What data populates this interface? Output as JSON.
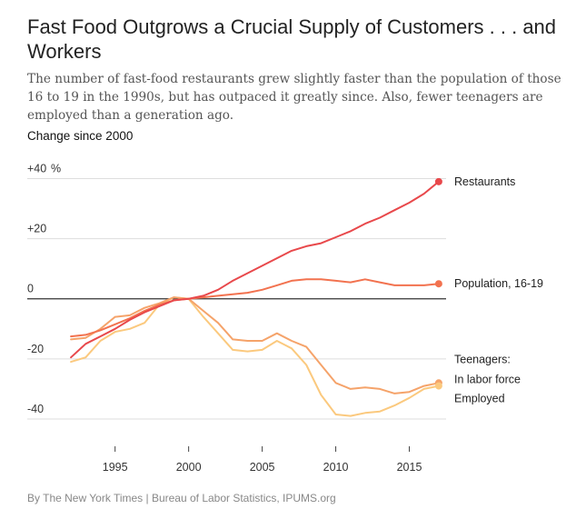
{
  "headline": {
    "title": "Fast Food Outgrows a Crucial Supply of Customers . . . and Workers",
    "subtitle": "The number of fast-food restaurants grew slightly faster than the population of those 16 to 19 in the 1990s, but has outpaced it greatly since. Also, fewer teenagers are employed than a generation ago.",
    "section_label": "Change since 2000",
    "source": "By The New York Times | Bureau of Labor Statistics, IPUMS.org"
  },
  "chart_data": {
    "type": "line",
    "title": "Change since 2000",
    "y_unit": "%",
    "xlim": [
      1991.5,
      2017.5
    ],
    "ylim": [
      -50,
      45
    ],
    "x_ticks": [
      1995,
      2000,
      2005,
      2010,
      2015
    ],
    "y_ticks": [
      40,
      20,
      0,
      -20,
      -40
    ],
    "y_tick_labels": [
      "+40",
      "+20",
      "0",
      "-20",
      "-40"
    ],
    "grid": "horizontal",
    "group_label": "Teenagers:",
    "series": [
      {
        "name": "Restaurants",
        "color": "#e8484b",
        "x": [
          1992,
          1993,
          1994,
          1995,
          1996,
          1997,
          1998,
          1999,
          2000,
          2001,
          2002,
          2003,
          2004,
          2005,
          2006,
          2007,
          2008,
          2009,
          2010,
          2011,
          2012,
          2013,
          2014,
          2015,
          2016,
          2017
        ],
        "values": [
          -19.5,
          -15,
          -12.5,
          -10,
          -7,
          -4.5,
          -2.5,
          -0.5,
          0,
          1,
          3,
          6,
          8.5,
          11,
          13.5,
          16,
          17.5,
          18.5,
          20.5,
          22.5,
          25,
          27,
          29.5,
          32,
          35,
          39
        ]
      },
      {
        "name": "Population, 16-19",
        "color": "#f2724f",
        "x": [
          1992,
          1993,
          1994,
          1995,
          1996,
          1997,
          1998,
          1999,
          2000,
          2001,
          2002,
          2003,
          2004,
          2005,
          2006,
          2007,
          2008,
          2009,
          2010,
          2011,
          2012,
          2013,
          2014,
          2015,
          2016,
          2017
        ],
        "values": [
          -12.5,
          -12,
          -10.5,
          -8.5,
          -6.5,
          -4,
          -2,
          -0.5,
          0,
          0.5,
          1,
          1.5,
          2,
          3,
          4.5,
          6,
          6.5,
          6.5,
          6,
          5.5,
          6.5,
          5.5,
          4.5,
          4.5,
          4.5,
          5
        ]
      },
      {
        "name": "In labor force",
        "color": "#f5a36a",
        "x": [
          1992,
          1993,
          1994,
          1995,
          1996,
          1997,
          1998,
          1999,
          2000,
          2001,
          2002,
          2003,
          2004,
          2005,
          2006,
          2007,
          2008,
          2009,
          2010,
          2011,
          2012,
          2013,
          2014,
          2015,
          2016,
          2017
        ],
        "values": [
          -13.5,
          -13,
          -10,
          -6,
          -5.5,
          -3,
          -1.5,
          0.5,
          0,
          -4,
          -8,
          -13.5,
          -14,
          -14,
          -11.5,
          -14,
          -16,
          -22,
          -28,
          -30,
          -29.5,
          -30,
          -31.5,
          -31,
          -29,
          -28
        ]
      },
      {
        "name": "Employed",
        "color": "#fbc97e",
        "x": [
          1992,
          1993,
          1994,
          1995,
          1996,
          1997,
          1998,
          1999,
          2000,
          2001,
          2002,
          2003,
          2004,
          2005,
          2006,
          2007,
          2008,
          2009,
          2010,
          2011,
          2012,
          2013,
          2014,
          2015,
          2016,
          2017
        ],
        "values": [
          -21,
          -19.5,
          -14,
          -11,
          -10,
          -8,
          -2,
          0.5,
          0,
          -6,
          -11.5,
          -17,
          -17.5,
          -17,
          -14,
          -16.5,
          -22,
          -32,
          -38.5,
          -39,
          -38,
          -37.5,
          -35.5,
          -33,
          -30,
          -29
        ]
      }
    ]
  }
}
